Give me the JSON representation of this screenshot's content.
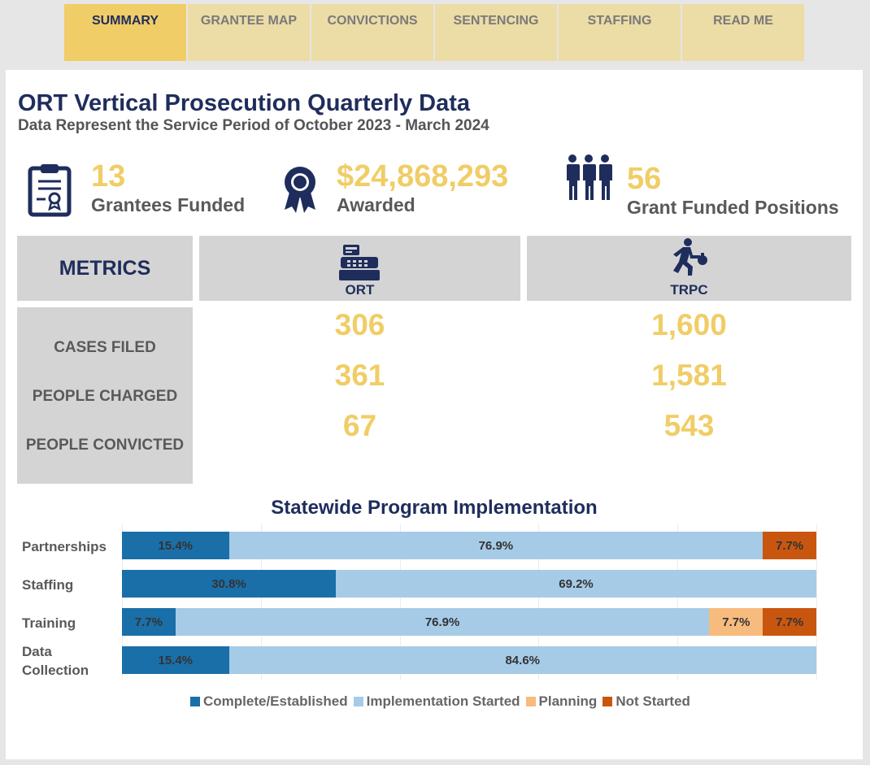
{
  "tabs": [
    {
      "label": "SUMMARY",
      "active": true
    },
    {
      "label": "GRANTEE MAP",
      "active": false
    },
    {
      "label": "CONVICTIONS",
      "active": false
    },
    {
      "label": "SENTENCING",
      "active": false
    },
    {
      "label": "STAFFING",
      "active": false
    },
    {
      "label": "READ ME",
      "active": false
    }
  ],
  "header": {
    "title": "ORT Vertical Prosecution Quarterly Data",
    "subtitle": "Data Represent the Service Period of October 2023 - March 2024"
  },
  "kpis": {
    "grantees": {
      "value": "13",
      "label": "Grantees Funded",
      "icon": "clipboard-certificate-icon"
    },
    "awarded": {
      "value": "$24,868,293",
      "label": "Awarded",
      "icon": "award-ribbon-icon"
    },
    "positions": {
      "value": "56",
      "label": "Grant Funded Positions",
      "icon": "people-group-icon"
    }
  },
  "metrics": {
    "header": "METRICS",
    "columns": [
      {
        "label": "ORT",
        "icon": "cash-register-icon"
      },
      {
        "label": "TRPC",
        "icon": "running-thief-icon"
      }
    ],
    "rows": [
      {
        "label": "CASES FILED",
        "ort": "306",
        "trpc": "1,600"
      },
      {
        "label": "PEOPLE CHARGED",
        "ort": "361",
        "trpc": "1,581"
      },
      {
        "label": "PEOPLE CONVICTED",
        "ort": "67",
        "trpc": "543"
      }
    ]
  },
  "chart_data": {
    "type": "bar",
    "orientation": "horizontal-stacked-100",
    "title": "Statewide Program Implementation",
    "categories": [
      "Partnerships",
      "Staffing",
      "Training",
      "Data Collection"
    ],
    "series": [
      {
        "name": "Complete/Established",
        "color": "#1a6fa8",
        "values": [
          15.4,
          30.8,
          7.7,
          15.4
        ]
      },
      {
        "name": "Implementation Started",
        "color": "#a6cbe7",
        "values": [
          76.9,
          69.2,
          76.9,
          84.6
        ]
      },
      {
        "name": "Planning",
        "color": "#f7bb7e",
        "values": [
          0,
          0,
          7.7,
          0
        ]
      },
      {
        "name": "Not Started",
        "color": "#c9560f",
        "values": [
          7.7,
          0,
          7.7,
          0
        ]
      }
    ],
    "legend": "bottom"
  }
}
